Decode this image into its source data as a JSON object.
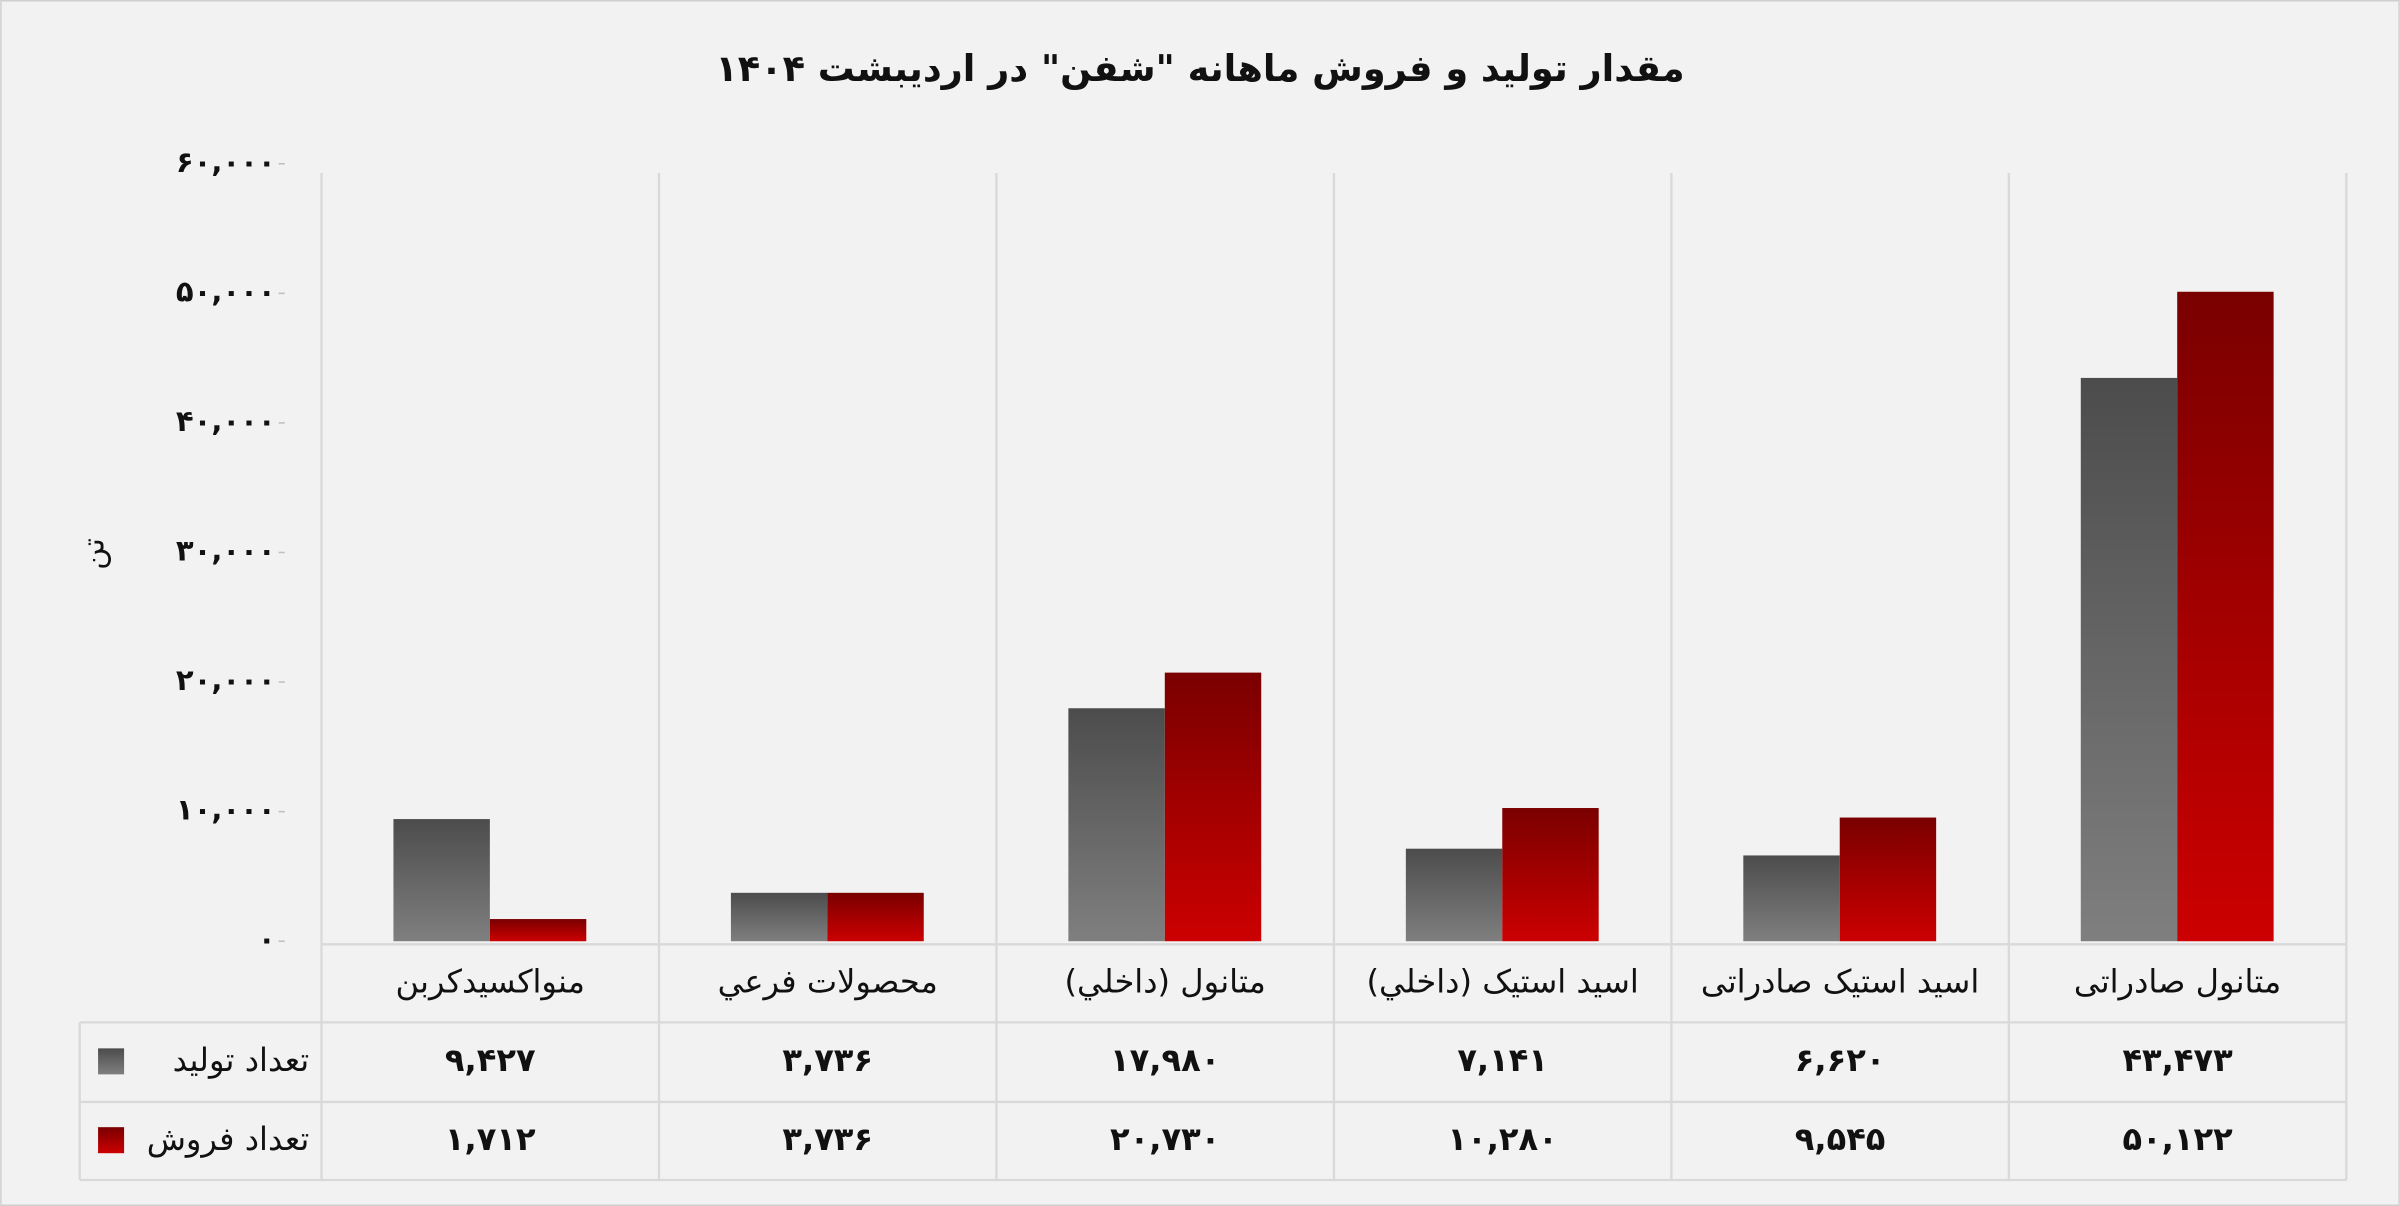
{
  "chart_data": {
    "type": "bar",
    "title": "مقدار تولید و فروش ماهانه \"شفن\" در اردیبشت ۱۴۰۴",
    "y_label": "تن",
    "categories": [
      "منواکسیدکربن",
      "محصولات فرعي",
      "متانول (داخلي)",
      "اسید استیک (داخلي)",
      "اسید استیک صادراتی",
      "متانول صادراتی"
    ],
    "series": [
      {
        "name": "تعداد تولید",
        "color": "#7f7f7f",
        "values": [
          9427,
          3736,
          17980,
          7141,
          6620,
          43473
        ],
        "value_labels": [
          "۹,۴۲۷",
          "۳,۷۳۶",
          "۱۷,۹۸۰",
          "۷,۱۴۱",
          "۶,۶۲۰",
          "۴۳,۴۷۳"
        ]
      },
      {
        "name": "تعداد فروش",
        "color": "#cc0000",
        "values": [
          1712,
          3736,
          20730,
          10280,
          9545,
          50122
        ],
        "value_labels": [
          "۱,۷۱۲",
          "۳,۷۳۶",
          "۲۰,۷۳۰",
          "۱۰,۲۸۰",
          "۹,۵۴۵",
          "۵۰,۱۲۲"
        ]
      }
    ],
    "ylim": [
      0,
      60000
    ],
    "yticks": [
      {
        "value": 0,
        "label": "۰"
      },
      {
        "value": 10000,
        "label": "۱۰,۰۰۰"
      },
      {
        "value": 20000,
        "label": "۲۰,۰۰۰"
      },
      {
        "value": 30000,
        "label": "۳۰,۰۰۰"
      },
      {
        "value": 40000,
        "label": "۴۰,۰۰۰"
      },
      {
        "value": 50000,
        "label": "۵۰,۰۰۰"
      },
      {
        "value": 60000,
        "label": "۶۰,۰۰۰"
      }
    ],
    "grid": true
  }
}
